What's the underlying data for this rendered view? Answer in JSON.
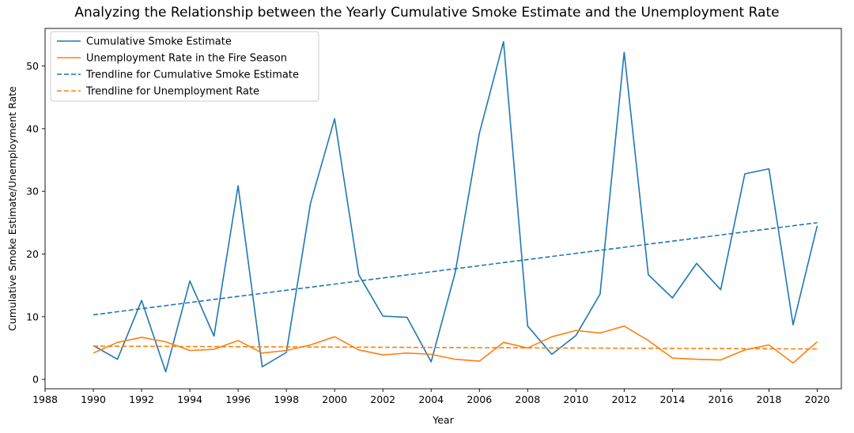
{
  "chart_data": {
    "type": "line",
    "title": "Analyzing the Relationship between the Yearly Cumulative Smoke Estimate and the Unemployment Rate",
    "xlabel": "Year",
    "ylabel": "Cumulative Smoke Estimate/Unemployment Rate",
    "xlim": [
      1988,
      2021
    ],
    "ylim": [
      -1.5,
      56
    ],
    "x_ticks": [
      1988,
      1990,
      1992,
      1994,
      1996,
      1998,
      2000,
      2002,
      2004,
      2006,
      2008,
      2010,
      2012,
      2014,
      2016,
      2018,
      2020
    ],
    "y_ticks": [
      0,
      10,
      20,
      30,
      40,
      50
    ],
    "grid": false,
    "legend_position": "top-left",
    "x": [
      1990,
      1991,
      1992,
      1993,
      1994,
      1995,
      1996,
      1997,
      1998,
      1999,
      2000,
      2001,
      2002,
      2003,
      2004,
      2005,
      2006,
      2007,
      2008,
      2009,
      2010,
      2011,
      2012,
      2013,
      2014,
      2015,
      2016,
      2017,
      2018,
      2019,
      2020
    ],
    "series": [
      {
        "name": "Cumulative Smoke Estimate",
        "color": "#1f77b4",
        "style": "solid",
        "values": [
          5.4,
          3.2,
          12.6,
          1.2,
          15.7,
          6.9,
          30.9,
          2.0,
          4.3,
          28.1,
          41.6,
          16.7,
          10.1,
          9.9,
          2.8,
          17.1,
          39.3,
          53.9,
          8.5,
          4.0,
          7.0,
          13.6,
          52.2,
          16.7,
          13.0,
          18.5,
          14.3,
          32.8,
          33.6,
          8.7,
          24.5
        ]
      },
      {
        "name": "Unemployment Rate in the Fire Season",
        "color": "#ff7f0e",
        "style": "solid",
        "values": [
          4.2,
          5.9,
          6.7,
          6.0,
          4.6,
          4.8,
          6.2,
          4.2,
          4.6,
          5.5,
          6.8,
          4.7,
          3.9,
          4.2,
          4.0,
          3.2,
          2.9,
          5.9,
          5.0,
          6.8,
          7.8,
          7.4,
          8.5,
          6.2,
          3.4,
          3.2,
          3.1,
          4.7,
          5.5,
          2.6,
          6.0
        ]
      },
      {
        "name": "Trendline for Cumulative Smoke Estimate",
        "color": "#1f77b4",
        "style": "dashed",
        "values_at_ends": [
          10.3,
          25.0
        ]
      },
      {
        "name": "Trendline for Unemployment Rate",
        "color": "#ff7f0e",
        "style": "dashed",
        "values_at_ends": [
          5.3,
          4.85
        ]
      }
    ]
  }
}
